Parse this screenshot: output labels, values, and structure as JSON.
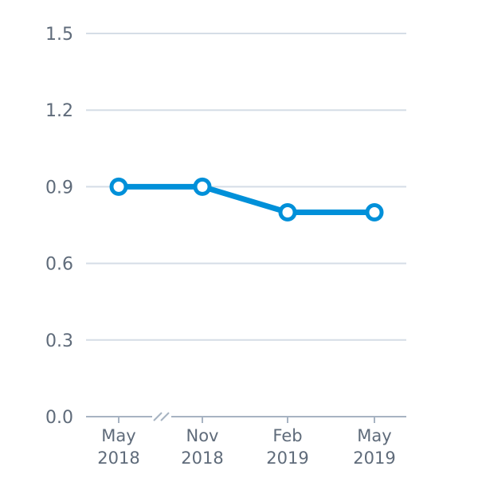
{
  "chart_data": {
    "type": "line",
    "title": "",
    "xlabel": "",
    "ylabel": "",
    "categories": [
      {
        "line1": "May",
        "line2": "2018"
      },
      {
        "line1": "Nov",
        "line2": "2018"
      },
      {
        "line1": "Feb",
        "line2": "2019"
      },
      {
        "line1": "May",
        "line2": "2019"
      }
    ],
    "x_dates": [
      "2018-05",
      "2018-11",
      "2019-02",
      "2019-05"
    ],
    "axis_break": {
      "between": [
        "2018-05",
        "2018-11"
      ]
    },
    "series": [
      {
        "values": [
          0.9,
          0.9,
          0.8,
          0.8
        ],
        "color": "#0090d9"
      }
    ],
    "ylim": [
      0.0,
      1.5
    ],
    "yticks": [
      "0.0",
      "0.3",
      "0.6",
      "0.9",
      "1.2",
      "1.5"
    ],
    "grid": true,
    "legend": "none",
    "colors": {
      "gridline": "#d5dde6",
      "axis": "#a7b3c2",
      "tick_text": "#5f6b7a",
      "marker_fill": "#ffffff"
    }
  }
}
